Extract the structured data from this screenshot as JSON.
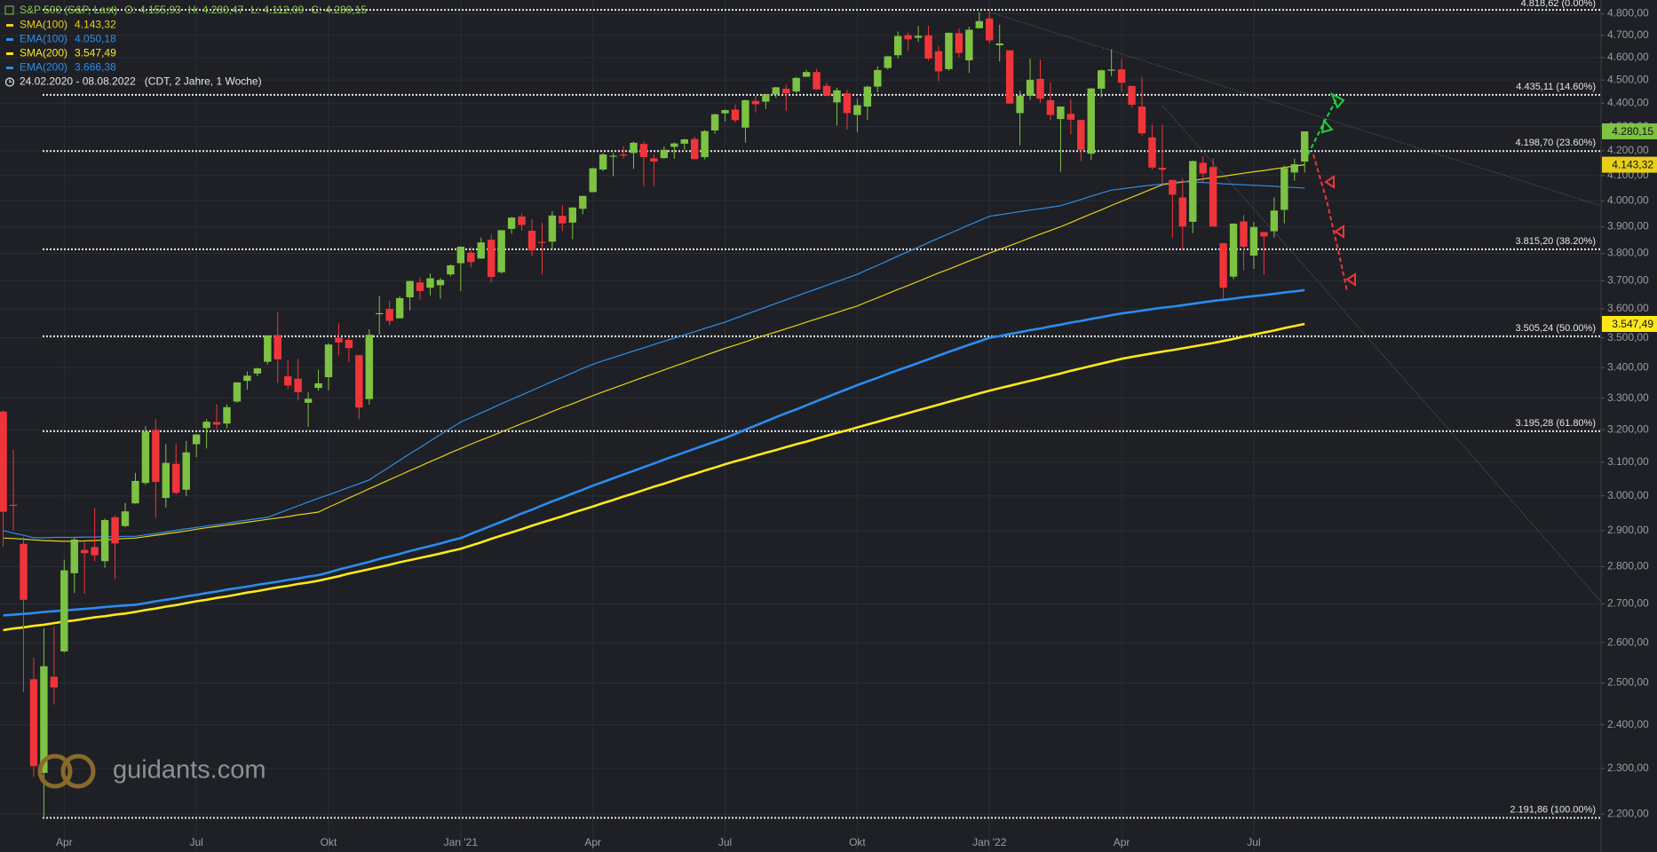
{
  "chart_data": {
    "type": "candlestick",
    "title": "S&P 500 (S&P, Last)",
    "quote": [
      {
        "key": "O:",
        "label": "4.155,93"
      },
      {
        "key": "H:",
        "label": "4.280,47"
      },
      {
        "key": "L:",
        "label": "4.112,09"
      },
      {
        "key": "C:",
        "label": "4.280,15"
      }
    ],
    "period": "24.02.2020 - 08.08.2022",
    "period_note": "(CDT, 2 Jahre, 1 Woche)",
    "watermark": "guidants.com",
    "categories": [
      null,
      null,
      null,
      null,
      null,
      null,
      "Apr",
      null,
      null,
      null,
      null,
      null,
      null,
      null,
      null,
      null,
      null,
      null,
      null,
      "Jul",
      null,
      null,
      null,
      null,
      null,
      null,
      null,
      null,
      null,
      null,
      null,
      null,
      "Okt",
      null,
      null,
      null,
      null,
      null,
      null,
      null,
      null,
      null,
      null,
      null,
      null,
      "Jan '21",
      null,
      null,
      null,
      null,
      null,
      null,
      null,
      null,
      null,
      null,
      null,
      null,
      "Apr",
      null,
      null,
      null,
      null,
      null,
      null,
      null,
      null,
      null,
      null,
      null,
      null,
      "Jul",
      null,
      null,
      null,
      null,
      null,
      null,
      null,
      null,
      null,
      null,
      null,
      null,
      "Okt",
      null,
      null,
      null,
      null,
      null,
      null,
      null,
      null,
      null,
      null,
      null,
      null,
      "Jan '22",
      null,
      null,
      null,
      null,
      null,
      null,
      null,
      null,
      null,
      null,
      null,
      null,
      "Apr",
      null,
      null,
      null,
      null,
      null,
      null,
      null,
      null,
      null,
      null,
      null,
      null,
      "Jul",
      null,
      null,
      null,
      null,
      null
    ],
    "open": [
      3257,
      2974,
      2863,
      2509,
      2290,
      2515,
      2578,
      2782,
      2846,
      2854,
      2815,
      2938,
      2913,
      2978,
      3038,
      3199,
      2994,
      3095,
      3018,
      3155,
      3205,
      3224,
      3219,
      3289,
      3356,
      3380,
      3419,
      3509,
      3371,
      3363,
      3285,
      3333,
      3368,
      3500,
      3493,
      3441,
      3297,
      3583,
      3600,
      3567,
      3641,
      3694,
      3675,
      3684,
      3723,
      3764,
      3803,
      3781,
      3851,
      3731,
      3892,
      3939,
      3885,
      3843,
      3844,
      3942,
      3916,
      3969,
      4034,
      4124,
      4179,
      4185,
      4191,
      4228,
      4169,
      4170,
      4216,
      4229,
      4248,
      4174,
      4284,
      4356,
      4372,
      4296,
      4409,
      4406,
      4438,
      4462,
      4450,
      4514,
      4535,
      4474,
      4403,
      4442,
      4349,
      4385,
      4471,
      4553,
      4610,
      4701,
      4689,
      4700,
      4628,
      4548,
      4710,
      4587,
      4733,
      4778,
      4655,
      4632,
      4357,
      4431,
      4505,
      4412,
      4332,
      4354,
      4328,
      4188,
      4462,
      4541,
      4547,
      4474,
      4385,
      4255,
      4131,
      4082,
      4013,
      3919,
      4151,
      4134,
      3838,
      3715,
      3920,
      3792,
      3880,
      3883,
      3965,
      4112,
      4155.93
    ],
    "high": [
      3260,
      3137,
      2882,
      2562,
      2637,
      2641,
      2819,
      2880,
      2868,
      2965,
      2935,
      2944,
      2980,
      3068,
      3211,
      3233,
      3155,
      3155,
      3165,
      3186,
      3233,
      3280,
      3280,
      3352,
      3387,
      3399,
      3509,
      3588,
      3425,
      3429,
      3320,
      3393,
      3481,
      3550,
      3502,
      3441,
      3529,
      3646,
      3629,
      3645,
      3700,
      3712,
      3726,
      3711,
      3760,
      3826,
      3823,
      3859,
      3870,
      3887,
      3937,
      3950,
      3928,
      3915,
      3960,
      3984,
      3975,
      4020,
      4130,
      4191,
      4191,
      4219,
      4238,
      4237,
      4186,
      4218,
      4234,
      4249,
      4258,
      4286,
      4355,
      4372,
      4394,
      4415,
      4430,
      4440,
      4470,
      4480,
      4513,
      4545,
      4549,
      4487,
      4466,
      4457,
      4419,
      4475,
      4560,
      4608,
      4718,
      4714,
      4743,
      4744,
      4652,
      4713,
      4731,
      4740,
      4808,
      4819,
      4749,
      4632,
      4453,
      4595,
      4590,
      4490,
      4385,
      4416,
      4329,
      4465,
      4546,
      4637,
      4594,
      4474,
      4513,
      4308,
      4308,
      4082,
      4090,
      4160,
      4177,
      4169,
      3838,
      3913,
      3946,
      3918,
      3880,
      4013,
      4140,
      4168,
      4280.47
    ],
    "low": [
      2855,
      2901,
      2478,
      2281,
      2192,
      2448,
      2575,
      2729,
      2727,
      2815,
      2797,
      2766,
      2910,
      2977,
      3032,
      2936,
      2966,
      3004,
      2999,
      3115,
      3142,
      3201,
      3205,
      3285,
      3327,
      3371,
      3410,
      3349,
      3330,
      3292,
      3209,
      3324,
      3325,
      3441,
      3419,
      3233,
      3279,
      3511,
      3543,
      3567,
      3594,
      3633,
      3648,
      3636,
      3716,
      3663,
      3749,
      3780,
      3694,
      3726,
      3874,
      3885,
      3789,
      3723,
      3813,
      3884,
      3853,
      3948,
      4034,
      4118,
      4097,
      4169,
      4126,
      4057,
      4056,
      4168,
      4167,
      4206,
      4165,
      4165,
      4271,
      4321,
      4318,
      4233,
      4360,
      4374,
      4422,
      4367,
      4444,
      4514,
      4457,
      4428,
      4305,
      4288,
      4278,
      4329,
      4447,
      4546,
      4595,
      4630,
      4670,
      4585,
      4495,
      4541,
      4600,
      4531,
      4733,
      4662,
      4582,
      4395,
      4223,
      4414,
      4401,
      4327,
      4115,
      4268,
      4157,
      4162,
      4425,
      4517,
      4450,
      4381,
      4262,
      4124,
      4063,
      3859,
      3811,
      3876,
      4073,
      3900,
      3637,
      3706,
      3738,
      3743,
      3722,
      3859,
      3913,
      4079,
      4112.09
    ],
    "close": [
      2954,
      2972,
      2711,
      2305,
      2541,
      2489,
      2790,
      2875,
      2837,
      2831,
      2930,
      2864,
      2955,
      3044,
      3194,
      3041,
      3098,
      3009,
      3130,
      3185,
      3225,
      3216,
      3271,
      3351,
      3373,
      3397,
      3508,
      3427,
      3341,
      3319,
      3298,
      3348,
      3477,
      3484,
      3465,
      3270,
      3510,
      3585,
      3558,
      3638,
      3699,
      3663,
      3709,
      3703,
      3756,
      3825,
      3768,
      3841,
      3714,
      3887,
      3935,
      3907,
      3811,
      3842,
      3943,
      3913,
      3974,
      4019,
      4129,
      4185,
      4180,
      4181,
      4233,
      4174,
      4156,
      4204,
      4230,
      4247,
      4166,
      4281,
      4352,
      4370,
      4327,
      4412,
      4395,
      4437,
      4468,
      4442,
      4509,
      4535,
      4459,
      4432,
      4455,
      4357,
      4391,
      4471,
      4544,
      4605,
      4697,
      4682,
      4698,
      4595,
      4538,
      4712,
      4620,
      4726,
      4766,
      4677,
      4663,
      4398,
      4432,
      4501,
      4419,
      4349,
      4385,
      4329,
      4204,
      4463,
      4543,
      4546,
      4488,
      4393,
      4272,
      4132,
      4123,
      4024,
      3901,
      4158,
      4108,
      3901,
      3675,
      3912,
      3825,
      3899,
      3863,
      3962,
      4130,
      4145,
      4280.15
    ],
    "up_color": "#7dc242",
    "down_color": "#f0353a",
    "series": [
      {
        "name": "SMA(100)",
        "last_label": "4.143,32",
        "color": "#e8cf1a",
        "width": 1.2,
        "axis_tag": true,
        "values": [
          2879,
          2878,
          2876,
          2874,
          2872,
          2871,
          2870,
          2870,
          2871,
          2872,
          2874,
          2876,
          2878,
          2879,
          2883,
          2887,
          2891,
          2895,
          2899,
          2904,
          2908,
          2912,
          2916,
          2920,
          2924,
          2928,
          2932,
          2936,
          2940,
          2945,
          2949,
          2953,
          2967,
          2980,
          2994,
          3007,
          3021,
          3034,
          3048,
          3061,
          3075,
          3088,
          3102,
          3115,
          3129,
          3142,
          3155,
          3168,
          3180,
          3193,
          3206,
          3219,
          3231,
          3244,
          3257,
          3270,
          3282,
          3295,
          3308,
          3320,
          3332,
          3344,
          3356,
          3368,
          3380,
          3392,
          3404,
          3416,
          3428,
          3440,
          3452,
          3464,
          3475,
          3486,
          3498,
          3509,
          3520,
          3531,
          3542,
          3554,
          3565,
          3576,
          3587,
          3599,
          3610,
          3625,
          3639,
          3654,
          3669,
          3683,
          3698,
          3713,
          3728,
          3742,
          3757,
          3772,
          3786,
          3801,
          3815,
          3829,
          3843,
          3858,
          3872,
          3886,
          3900,
          3916,
          3933,
          3949,
          3965,
          3982,
          3998,
          4014,
          4030,
          4047,
          4063,
          4069,
          4074,
          4080,
          4086,
          4092,
          4097,
          4103,
          4109,
          4115,
          4120,
          4126,
          4132,
          4138,
          4143.32
        ]
      },
      {
        "name": "EMA(100)",
        "last_label": "4.050,18",
        "color": "#2f8ee6",
        "width": 1.2,
        "axis_tag": false,
        "values": [
          2900,
          2893,
          2887,
          2880,
          2880,
          2881,
          2881,
          2881,
          2882,
          2882,
          2883,
          2883,
          2884,
          2884,
          2888,
          2892,
          2896,
          2901,
          2905,
          2909,
          2913,
          2917,
          2921,
          2926,
          2930,
          2934,
          2938,
          2949,
          2960,
          2971,
          2982,
          2993,
          3003,
          3014,
          3025,
          3036,
          3047,
          3067,
          3086,
          3106,
          3126,
          3145,
          3165,
          3185,
          3204,
          3224,
          3238,
          3253,
          3267,
          3282,
          3296,
          3310,
          3325,
          3339,
          3354,
          3368,
          3382,
          3397,
          3411,
          3422,
          3433,
          3444,
          3455,
          3466,
          3477,
          3488,
          3499,
          3510,
          3521,
          3532,
          3543,
          3554,
          3567,
          3580,
          3593,
          3606,
          3619,
          3632,
          3645,
          3658,
          3671,
          3684,
          3697,
          3710,
          3723,
          3740,
          3756,
          3773,
          3790,
          3807,
          3823,
          3840,
          3857,
          3873,
          3890,
          3907,
          3923,
          3940,
          3946,
          3952,
          3958,
          3964,
          3969,
          3975,
          3981,
          3993,
          4005,
          4018,
          4030,
          4042,
          4047,
          4052,
          4057,
          4062,
          4066,
          4071,
          4076,
          4074,
          4072,
          4070,
          4067,
          4065,
          4063,
          4061,
          4059,
          4057,
          4054,
          4052,
          4050.18
        ]
      },
      {
        "name": "SMA(200)",
        "last_label": "3.547,49",
        "color": "#ffe81a",
        "width": 2.6,
        "axis_tag": true,
        "values": [
          2632,
          2636,
          2639,
          2643,
          2646,
          2650,
          2654,
          2657,
          2661,
          2665,
          2668,
          2672,
          2675,
          2679,
          2684,
          2688,
          2693,
          2697,
          2702,
          2707,
          2711,
          2716,
          2720,
          2725,
          2730,
          2734,
          2739,
          2744,
          2748,
          2753,
          2757,
          2762,
          2768,
          2774,
          2781,
          2787,
          2793,
          2799,
          2805,
          2812,
          2818,
          2824,
          2830,
          2836,
          2843,
          2849,
          2858,
          2867,
          2877,
          2886,
          2895,
          2904,
          2914,
          2923,
          2932,
          2941,
          2951,
          2960,
          2969,
          2979,
          2988,
          2998,
          3007,
          3017,
          3027,
          3036,
          3046,
          3056,
          3065,
          3075,
          3084,
          3094,
          3103,
          3111,
          3120,
          3129,
          3137,
          3146,
          3155,
          3163,
          3172,
          3181,
          3190,
          3198,
          3207,
          3216,
          3225,
          3234,
          3243,
          3252,
          3261,
          3270,
          3279,
          3288,
          3297,
          3306,
          3315,
          3324,
          3332,
          3340,
          3348,
          3356,
          3364,
          3372,
          3380,
          3389,
          3397,
          3405,
          3413,
          3421,
          3429,
          3435,
          3441,
          3447,
          3453,
          3458,
          3464,
          3470,
          3476,
          3482,
          3489,
          3496,
          3504,
          3511,
          3518,
          3525,
          3533,
          3540,
          3547.49
        ]
      },
      {
        "name": "EMA(200)",
        "last_label": "3.666,38",
        "color": "#2b8cf0",
        "width": 2.6,
        "axis_tag": false,
        "values": [
          2670,
          2672,
          2674,
          2676,
          2679,
          2681,
          2683,
          2685,
          2687,
          2689,
          2692,
          2694,
          2696,
          2698,
          2702,
          2707,
          2711,
          2715,
          2720,
          2724,
          2729,
          2733,
          2738,
          2742,
          2746,
          2751,
          2755,
          2759,
          2764,
          2768,
          2773,
          2777,
          2784,
          2792,
          2799,
          2806,
          2813,
          2821,
          2828,
          2835,
          2843,
          2850,
          2857,
          2864,
          2872,
          2879,
          2891,
          2902,
          2914,
          2925,
          2937,
          2949,
          2960,
          2972,
          2984,
          2995,
          3007,
          3018,
          3030,
          3041,
          3052,
          3063,
          3074,
          3085,
          3096,
          3108,
          3119,
          3130,
          3141,
          3152,
          3163,
          3174,
          3187,
          3200,
          3213,
          3226,
          3239,
          3252,
          3264,
          3277,
          3290,
          3303,
          3316,
          3329,
          3342,
          3354,
          3366,
          3379,
          3391,
          3403,
          3415,
          3427,
          3440,
          3452,
          3464,
          3476,
          3488,
          3500,
          3506,
          3513,
          3519,
          3526,
          3532,
          3539,
          3545,
          3552,
          3558,
          3565,
          3571,
          3578,
          3584,
          3589,
          3594,
          3599,
          3604,
          3608,
          3613,
          3618,
          3623,
          3628,
          3632,
          3636,
          3641,
          3645,
          3649,
          3653,
          3658,
          3662,
          3666.38
        ]
      }
    ],
    "levels": [
      {
        "value": 4818.62,
        "label": "4.818,62 (0.00%)"
      },
      {
        "value": 4435.11,
        "label": "4.435,11 (14.60%)"
      },
      {
        "value": 4198.7,
        "label": "4.198,70 (23.60%)"
      },
      {
        "value": 3815.2,
        "label": "3.815,20 (38.20%)"
      },
      {
        "value": 3505.24,
        "label": "3.505,24 (50.00%)"
      },
      {
        "value": 3195.28,
        "label": "3.195,28 (61.80%)"
      },
      {
        "value": 2191.86,
        "label": "2.191,86 (100.00%)"
      }
    ],
    "ylim": [
      2120,
      4865
    ],
    "log_y": true,
    "grid": true,
    "yticks": [
      {
        "value": 2200,
        "label": "2.200,00"
      },
      {
        "value": 2300,
        "label": "2.300,00"
      },
      {
        "value": 2400,
        "label": "2.400,00"
      },
      {
        "value": 2500,
        "label": "2.500,00"
      },
      {
        "value": 2600,
        "label": "2.600,00"
      },
      {
        "value": 2700,
        "label": "2.700,00"
      },
      {
        "value": 2800,
        "label": "2.800,00"
      },
      {
        "value": 2900,
        "label": "2.900,00"
      },
      {
        "value": 3000,
        "label": "3.000,00"
      },
      {
        "value": 3100,
        "label": "3.100,00"
      },
      {
        "value": 3200,
        "label": "3.200,00"
      },
      {
        "value": 3300,
        "label": "3.300,00"
      },
      {
        "value": 3400,
        "label": "3.400,00"
      },
      {
        "value": 3500,
        "label": "3.500,00"
      },
      {
        "value": 3600,
        "label": "3.600,00"
      },
      {
        "value": 3700,
        "label": "3.700,00"
      },
      {
        "value": 3800,
        "label": "3.800,00"
      },
      {
        "value": 3900,
        "label": "3.900,00"
      },
      {
        "value": 4000,
        "label": "4.000,00"
      },
      {
        "value": 4100,
        "label": "4.100,00"
      },
      {
        "value": 4200,
        "label": "4.200,00"
      },
      {
        "value": 4300,
        "label": "4.300,00"
      },
      {
        "value": 4400,
        "label": "4.400,00"
      },
      {
        "value": 4500,
        "label": "4.500,00"
      },
      {
        "value": 4600,
        "label": "4.600,00"
      },
      {
        "value": 4700,
        "label": "4.700,00"
      },
      {
        "value": 4800,
        "label": "4.800,00"
      }
    ]
  }
}
